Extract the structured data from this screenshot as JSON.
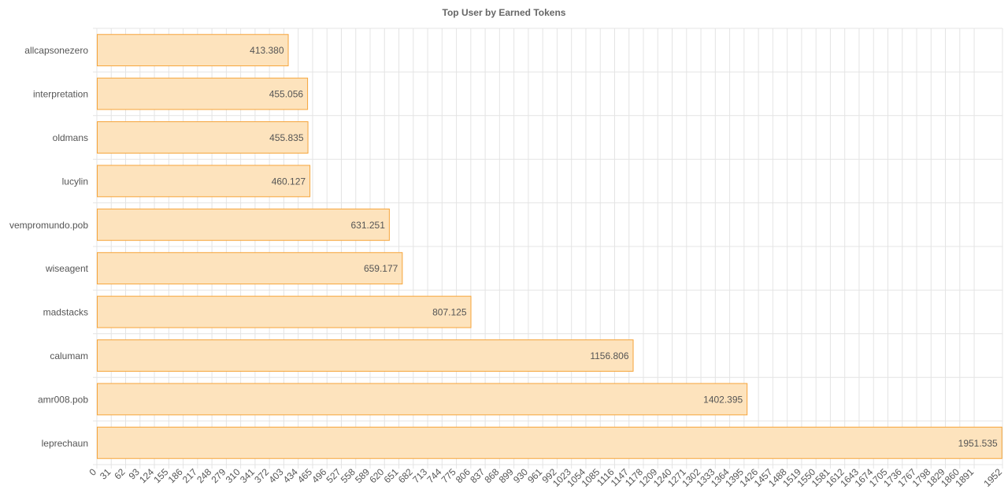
{
  "chart_data": {
    "type": "bar",
    "orientation": "horizontal",
    "title": "Top User by Earned Tokens",
    "xlabel": "",
    "ylabel": "",
    "categories": [
      "allcapsonezero",
      "interpretation",
      "oldmans",
      "lucylin",
      "vempromundo.pob",
      "wiseagent",
      "madstacks",
      "calumam",
      "amr008.pob",
      "leprechaun"
    ],
    "values": [
      413.38,
      455.056,
      455.835,
      460.127,
      631.251,
      659.177,
      807.125,
      1156.806,
      1402.395,
      1951.535
    ],
    "value_labels": [
      "413.380",
      "455.056",
      "455.835",
      "460.127",
      "631.251",
      "659.177",
      "807.125",
      "1156.806",
      "1402.395",
      "1951.535"
    ],
    "xlim": [
      0,
      1952
    ],
    "x_ticks": [
      0,
      31,
      62,
      93,
      124,
      155,
      186,
      217,
      248,
      279,
      310,
      341,
      372,
      403,
      434,
      465,
      496,
      527,
      558,
      589,
      620,
      651,
      682,
      713,
      744,
      775,
      806,
      837,
      868,
      899,
      930,
      961,
      992,
      1023,
      1054,
      1085,
      1116,
      1147,
      1178,
      1209,
      1240,
      1271,
      1302,
      1333,
      1364,
      1395,
      1426,
      1457,
      1488,
      1519,
      1550,
      1581,
      1612,
      1643,
      1674,
      1705,
      1736,
      1767,
      1798,
      1829,
      1860,
      1891,
      1952
    ],
    "grid": true,
    "legend": "none",
    "colors": {
      "bar_fill": "#fde3bd",
      "bar_stroke": "#f6a43a",
      "grid": "#e4e4e4",
      "text": "#555555",
      "title": "#666666"
    }
  }
}
